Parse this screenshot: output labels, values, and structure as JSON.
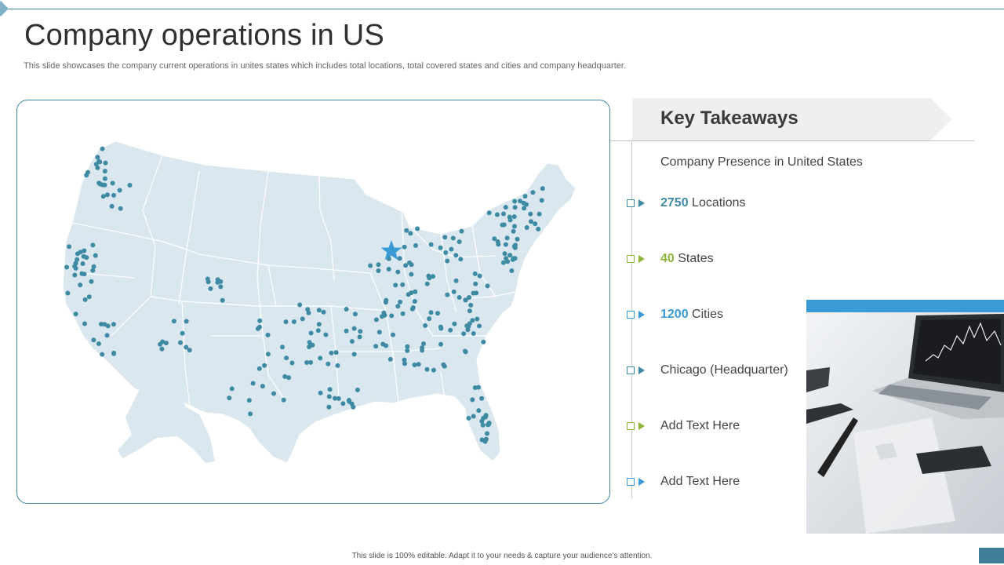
{
  "slide": {
    "title": "Company operations in US",
    "subtitle": "This slide showcases the company current operations in unites states which includes total locations, total covered states and cities and company headquarter.",
    "footer": "This slide is 100% editable. Adapt it to your needs & capture your audience’s attention."
  },
  "map": {
    "headquarter_marker": "star-icon",
    "location_dot_color": "#3e8aa3",
    "star_color": "#3a9ad6",
    "land_color": "#dae7ef"
  },
  "takeaways": {
    "title": "Key Takeaways",
    "intro": "Company Presence in United States",
    "items": [
      {
        "value": "2750",
        "label": " Locations",
        "color": "#3e8aa3"
      },
      {
        "value": "40",
        "label": " States",
        "color": "#8db53c"
      },
      {
        "value": "1200",
        "label": " Cities",
        "color": "#3a9ad6"
      },
      {
        "value": "",
        "label": "Chicago (Headquarter)",
        "color": "#3e8aa3"
      },
      {
        "value": "",
        "label": "Add Text Here",
        "color": "#8db53c"
      },
      {
        "value": "",
        "label": "Add Text Here",
        "color": "#3a9ad6"
      }
    ]
  },
  "colors": {
    "accent": "#3f7f98",
    "green": "#8db53c",
    "blue": "#3a9ad6"
  }
}
